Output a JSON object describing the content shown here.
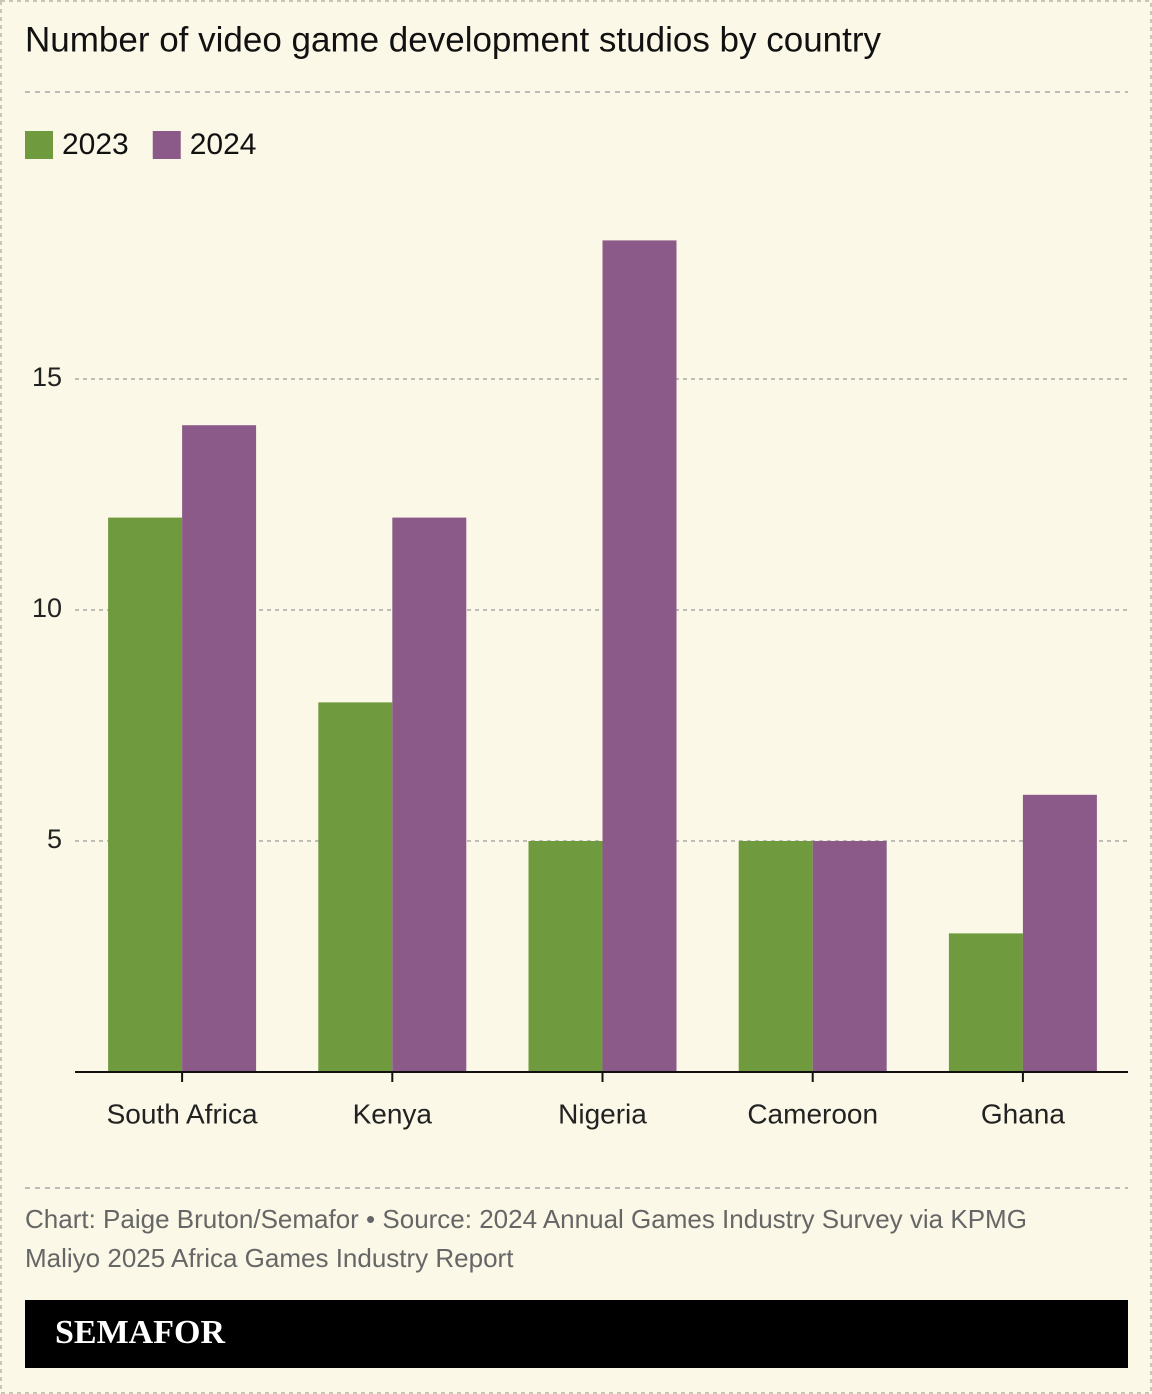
{
  "chart_data": {
    "type": "bar",
    "title": "Number of video game development studios by country",
    "categories": [
      "South Africa",
      "Kenya",
      "Nigeria",
      "Cameroon",
      "Ghana"
    ],
    "series": [
      {
        "name": "2023",
        "color": "#6f9a3d",
        "values": [
          12,
          8,
          5,
          5,
          3
        ]
      },
      {
        "name": "2024",
        "color": "#8c5a89",
        "values": [
          14,
          12,
          18,
          5,
          6
        ]
      }
    ],
    "ylim": [
      0,
      19
    ],
    "yticks": [
      5,
      10,
      15
    ],
    "grid": true,
    "legend": "top-left",
    "source": [
      "Chart: Paige Bruton/Semafor • Source: 2024 Annual Games Industry Survey via KPMG",
      "Maliyo 2025 Africa Games Industry Report"
    ]
  },
  "brand": "SEMAFOR"
}
